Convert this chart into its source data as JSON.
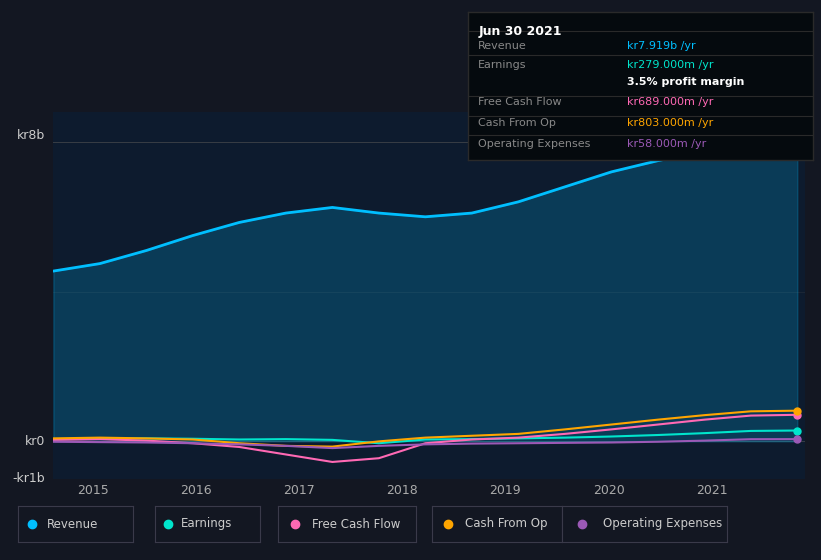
{
  "bg_color": "#131722",
  "plot_bg_color": "#0d1b2e",
  "ylabel_top": "kr8b",
  "ylabel_bottom": "-kr1b",
  "ylabel_zero": "kr0",
  "x_ticks": [
    2015,
    2016,
    2017,
    2018,
    2019,
    2020,
    2021
  ],
  "ylim": [
    -1000000000.0,
    8800000000.0
  ],
  "revenue": [
    4550000000.0,
    4750000000.0,
    5100000000.0,
    5500000000.0,
    5850000000.0,
    6100000000.0,
    6250000000.0,
    6100000000.0,
    6000000000.0,
    6100000000.0,
    6400000000.0,
    6800000000.0,
    7200000000.0,
    7500000000.0,
    7750000000.0,
    7919000000.0,
    8050000000.0
  ],
  "earnings": [
    60000000.0,
    70000000.0,
    80000000.0,
    70000000.0,
    50000000.0,
    60000000.0,
    40000000.0,
    -50000000.0,
    50000000.0,
    60000000.0,
    80000000.0,
    100000000.0,
    130000000.0,
    170000000.0,
    220000000.0,
    279000000.0,
    290000000.0
  ],
  "free_cash_flow": [
    40000000.0,
    60000000.0,
    20000000.0,
    -50000000.0,
    -150000000.0,
    -350000000.0,
    -550000000.0,
    -450000000.0,
    -50000000.0,
    50000000.0,
    100000000.0,
    200000000.0,
    320000000.0,
    450000000.0,
    580000000.0,
    689000000.0,
    710000000.0
  ],
  "cash_from_op": [
    80000000.0,
    100000000.0,
    80000000.0,
    50000000.0,
    -50000000.0,
    -120000000.0,
    -140000000.0,
    0.0,
    100000000.0,
    150000000.0,
    200000000.0,
    320000000.0,
    450000000.0,
    580000000.0,
    700000000.0,
    803000000.0,
    820000000.0
  ],
  "operating_expenses": [
    -10000000.0,
    -20000000.0,
    -30000000.0,
    -50000000.0,
    -80000000.0,
    -120000000.0,
    -180000000.0,
    -120000000.0,
    -80000000.0,
    -60000000.0,
    -50000000.0,
    -40000000.0,
    -30000000.0,
    -10000000.0,
    20000000.0,
    58000000.0,
    60000000.0
  ],
  "revenue_color": "#00bfff",
  "earnings_color": "#00e5cc",
  "free_cash_flow_color": "#ff69b4",
  "cash_from_op_color": "#ffa500",
  "operating_expenses_color": "#9b59b6",
  "info_box": {
    "title": "Jun 30 2021",
    "title_color": "#ffffff",
    "bg_color": "#050a0e",
    "border_color": "#2a2a2a",
    "rows": [
      {
        "label": "Revenue",
        "value": "kr7.919b /yr",
        "label_color": "#888888",
        "value_color": "#00bfff",
        "bold": false
      },
      {
        "label": "Earnings",
        "value": "kr279.000m /yr",
        "label_color": "#888888",
        "value_color": "#00e5cc",
        "bold": false
      },
      {
        "label": "",
        "value": "3.5% profit margin",
        "label_color": "#888888",
        "value_color": "#ffffff",
        "bold": true
      },
      {
        "label": "Free Cash Flow",
        "value": "kr689.000m /yr",
        "label_color": "#888888",
        "value_color": "#ff69b4",
        "bold": false
      },
      {
        "label": "Cash From Op",
        "value": "kr803.000m /yr",
        "label_color": "#888888",
        "value_color": "#ffa500",
        "bold": false
      },
      {
        "label": "Operating Expenses",
        "value": "kr58.000m /yr",
        "label_color": "#888888",
        "value_color": "#9b59b6",
        "bold": false
      }
    ]
  },
  "legend_items": [
    {
      "label": "Revenue",
      "color": "#00bfff"
    },
    {
      "label": "Earnings",
      "color": "#00e5cc"
    },
    {
      "label": "Free Cash Flow",
      "color": "#ff69b4"
    },
    {
      "label": "Cash From Op",
      "color": "#ffa500"
    },
    {
      "label": "Operating Expenses",
      "color": "#9b59b6"
    }
  ]
}
